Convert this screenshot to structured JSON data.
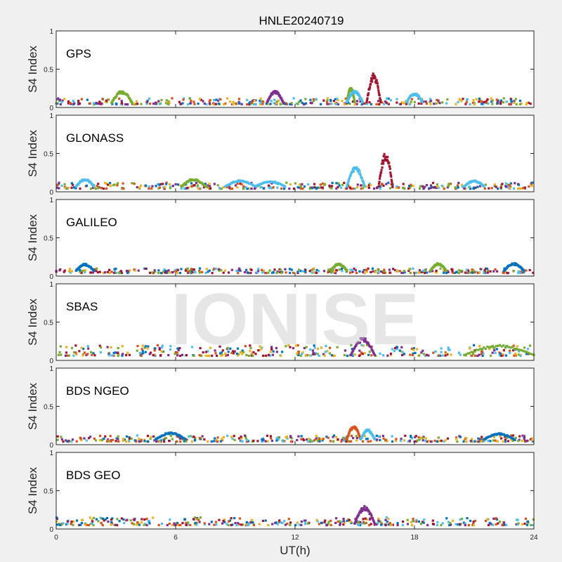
{
  "title": "HNLE20240719",
  "xlabel": "UT(h)",
  "ylabel": "S4 Index",
  "watermark": "IONISE",
  "xticks": [
    "0",
    "6",
    "12",
    "18",
    "24"
  ],
  "yticks": [
    "0",
    "0.5",
    "1"
  ],
  "colors": {
    "blue": "#0072BD",
    "orange": "#D95319",
    "yellow": "#EDB120",
    "purple": "#7E2F8E",
    "green": "#77AC30",
    "cyan": "#4DBEEE",
    "darkred": "#A2142F"
  },
  "chart_data": [
    {
      "type": "scatter",
      "title": "GPS",
      "xlim": [
        0,
        24
      ],
      "ylim": [
        0,
        1
      ],
      "baseline_s4": [
        0.04,
        0.12
      ],
      "features": [
        {
          "color": "green",
          "x": [
            2.8,
            3.8
          ],
          "peak": 0.22
        },
        {
          "color": "purple",
          "x": [
            10.6,
            11.4
          ],
          "peak": 0.22
        },
        {
          "color": "green",
          "x": [
            14.6,
            15.0
          ],
          "peak": 0.26
        },
        {
          "color": "cyan",
          "x": [
            14.6,
            15.4
          ],
          "peak": 0.22
        },
        {
          "color": "darkred",
          "x": [
            15.6,
            16.3
          ],
          "peak": 0.45
        },
        {
          "color": "cyan",
          "x": [
            17.6,
            18.4
          ],
          "peak": 0.19
        }
      ]
    },
    {
      "type": "scatter",
      "title": "GLONASS",
      "xlim": [
        0,
        24
      ],
      "ylim": [
        0,
        1
      ],
      "baseline_s4": [
        0.04,
        0.12
      ],
      "features": [
        {
          "color": "cyan",
          "x": [
            1.0,
            1.9
          ],
          "peak": 0.17
        },
        {
          "color": "green",
          "x": [
            6.3,
            7.5
          ],
          "peak": 0.17
        },
        {
          "color": "cyan",
          "x": [
            8.5,
            10.0
          ],
          "peak": 0.15
        },
        {
          "color": "cyan",
          "x": [
            10.0,
            11.5
          ],
          "peak": 0.14
        },
        {
          "color": "cyan",
          "x": [
            14.6,
            15.5
          ],
          "peak": 0.33
        },
        {
          "color": "darkred",
          "x": [
            16.2,
            16.9
          ],
          "peak": 0.52
        },
        {
          "color": "cyan",
          "x": [
            20.5,
            21.5
          ],
          "peak": 0.15
        }
      ]
    },
    {
      "type": "scatter",
      "title": "GALILEO",
      "xlim": [
        0,
        24
      ],
      "ylim": [
        0,
        1
      ],
      "baseline_s4": [
        0.04,
        0.1
      ],
      "features": [
        {
          "color": "blue",
          "x": [
            1.0,
            1.9
          ],
          "peak": 0.16
        },
        {
          "color": "green",
          "x": [
            13.8,
            14.6
          ],
          "peak": 0.17
        },
        {
          "color": "green",
          "x": [
            18.8,
            19.6
          ],
          "peak": 0.17
        },
        {
          "color": "blue",
          "x": [
            22.5,
            23.5
          ],
          "peak": 0.17
        }
      ]
    },
    {
      "type": "scatter",
      "title": "SBAS",
      "xlim": [
        0,
        24
      ],
      "ylim": [
        0,
        1
      ],
      "baseline_s4": [
        0.06,
        0.2
      ],
      "features": [
        {
          "color": "purple",
          "x": [
            14.8,
            16.0
          ],
          "peak": 0.3
        },
        {
          "color": "green",
          "x": [
            20.5,
            24.0
          ],
          "peak": 0.2
        }
      ]
    },
    {
      "type": "scatter",
      "title": "BDS NGEO",
      "xlim": [
        0,
        24
      ],
      "ylim": [
        0,
        1
      ],
      "baseline_s4": [
        0.04,
        0.12
      ],
      "features": [
        {
          "color": "blue",
          "x": [
            5.0,
            6.5
          ],
          "peak": 0.16
        },
        {
          "color": "orange",
          "x": [
            14.6,
            15.3
          ],
          "peak": 0.25
        },
        {
          "color": "cyan",
          "x": [
            15.3,
            16.0
          ],
          "peak": 0.2
        },
        {
          "color": "blue",
          "x": [
            21.5,
            23.0
          ],
          "peak": 0.15
        }
      ]
    },
    {
      "type": "scatter",
      "title": "BDS GEO",
      "xlim": [
        0,
        24
      ],
      "ylim": [
        0,
        1
      ],
      "baseline_s4": [
        0.05,
        0.15
      ],
      "features": [
        {
          "color": "purple",
          "x": [
            15.0,
            16.0
          ],
          "peak": 0.3
        }
      ]
    }
  ]
}
